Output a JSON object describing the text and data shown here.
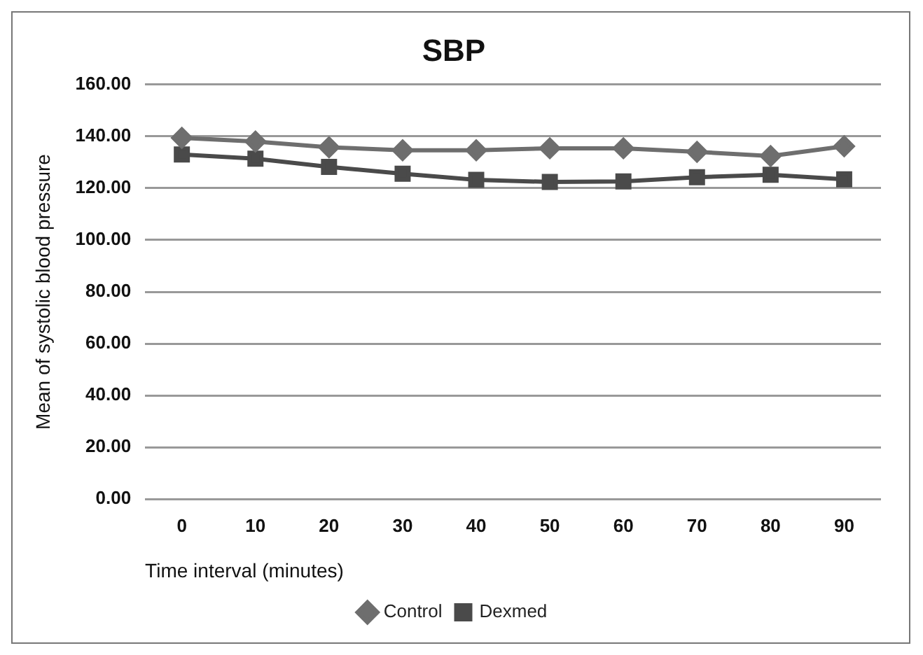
{
  "chart_data": {
    "type": "line",
    "title": "SBP",
    "xlabel": "Time interval (minutes)",
    "ylabel": "Mean of systolic blood pressure",
    "categories": [
      "0",
      "10",
      "20",
      "30",
      "40",
      "50",
      "60",
      "70",
      "80",
      "90"
    ],
    "series": [
      {
        "name": "Control",
        "color": "#6e6e6e",
        "marker": "diamond",
        "values": [
          139.4,
          138,
          135.8,
          134.6,
          134.6,
          135.4,
          135.4,
          134,
          132.4,
          136.2
        ]
      },
      {
        "name": "Dexmed",
        "color": "#4a4a4a",
        "marker": "square",
        "values": [
          133,
          131.4,
          128.2,
          125.6,
          123.2,
          122.4,
          122.6,
          124.2,
          125.2,
          123.4
        ]
      }
    ],
    "ylim": [
      0,
      160
    ],
    "yticks": [
      {
        "value": 0,
        "label": "0.00"
      },
      {
        "value": 20,
        "label": "20.00"
      },
      {
        "value": 40,
        "label": "40.00"
      },
      {
        "value": 60,
        "label": "60.00"
      },
      {
        "value": 80,
        "label": "80.00"
      },
      {
        "value": 100,
        "label": "100.00"
      },
      {
        "value": 120,
        "label": "120.00"
      },
      {
        "value": 140,
        "label": "140.00"
      },
      {
        "value": 160,
        "label": "160.00"
      }
    ],
    "grid": "y",
    "legend": "bottom",
    "line_style": "solid"
  }
}
